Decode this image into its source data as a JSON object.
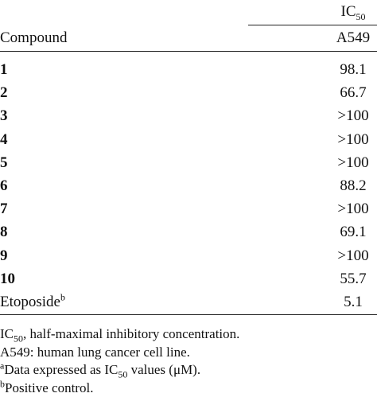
{
  "header": {
    "group": {
      "main": "IC",
      "sub": "50"
    },
    "column_label": "Compound",
    "column_value": "A549"
  },
  "table": {
    "rows": [
      {
        "compound": "1",
        "value": 98.1
      },
      {
        "compound": "2",
        "value": 66.7
      },
      {
        "compound": "3",
        "value": ">100"
      },
      {
        "compound": "4",
        "value": ">100"
      },
      {
        "compound": "5",
        "value": ">100"
      },
      {
        "compound": "6",
        "value": 88.2
      },
      {
        "compound": "7",
        "value": ">100"
      },
      {
        "compound": "8",
        "value": 69.1
      },
      {
        "compound": "9",
        "value": ">100"
      },
      {
        "compound": "10",
        "value": 55.7
      },
      {
        "compound": "Etoposide",
        "sup": "b",
        "value": 5.1
      }
    ]
  },
  "footnotes": [
    {
      "parts": [
        {
          "text": "IC"
        },
        {
          "text": "50",
          "style": "sub"
        },
        {
          "text": ", half-maximal inhibitory concentration."
        }
      ]
    },
    {
      "parts": [
        {
          "text": "A549: human lung cancer cell line."
        }
      ]
    },
    {
      "parts": [
        {
          "text": "a",
          "style": "sup"
        },
        {
          "text": "Data expressed as "
        },
        {
          "text": "IC"
        },
        {
          "text": "50",
          "style": "sub"
        },
        {
          "text": " values (μM)."
        }
      ]
    },
    {
      "parts": [
        {
          "text": "b",
          "style": "sup"
        },
        {
          "text": "Positive control."
        }
      ]
    }
  ]
}
